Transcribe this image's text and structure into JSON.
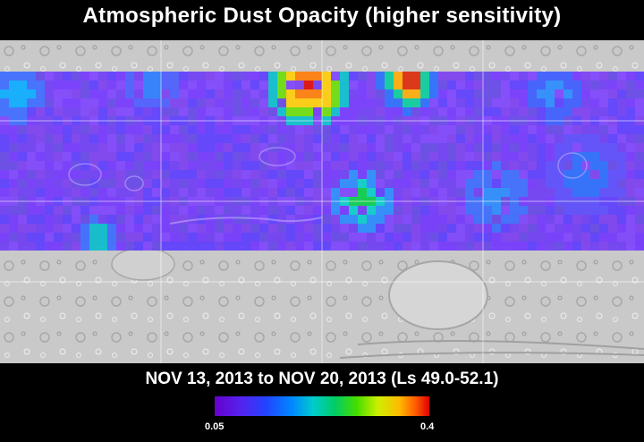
{
  "title": "Atmospheric Dust Opacity (higher sensitivity)",
  "date_range": "NOV 13, 2013 to NOV 20, 2013 (Ls 49.0-52.1)",
  "colorbar": {
    "min_label": "0.05",
    "max_label": "0.4",
    "colors": [
      "#6600cc",
      "#5522ee",
      "#2244ff",
      "#0088ff",
      "#00cccc",
      "#00cc66",
      "#44dd00",
      "#ccee00",
      "#ffbb00",
      "#ff5500",
      "#dd0000"
    ]
  },
  "dust_map": {
    "coverage_latitude": "data band covers northern and equatorial latitudes only",
    "background_color": "#7a3cff",
    "hotspots": [
      {
        "name": "north-central plume",
        "level": 0.4,
        "color": "#dd0000"
      },
      {
        "name": "north plume east",
        "level": 0.37,
        "color": "#ff3300"
      },
      {
        "name": "equatorial patch",
        "level": 0.2,
        "color": "#00cc44"
      },
      {
        "name": "western high latitude",
        "level": 0.15,
        "color": "#00aaff"
      }
    ]
  }
}
